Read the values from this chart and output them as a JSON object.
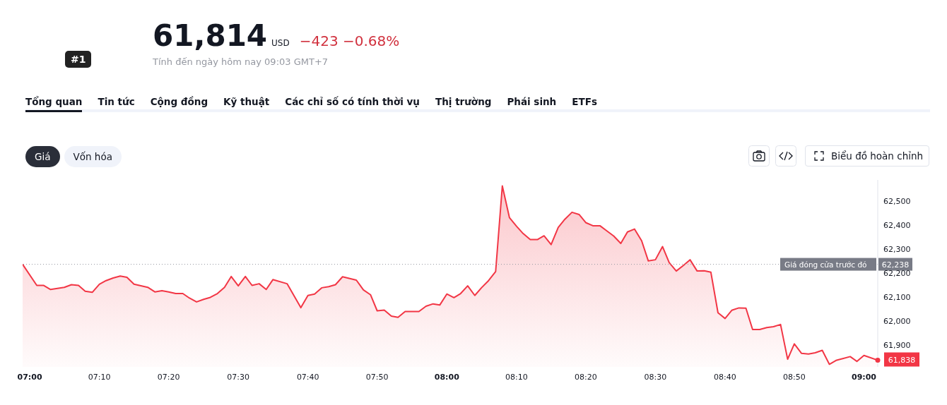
{
  "chart_data": {
    "type": "area",
    "title": "61,814",
    "subtitle": "Tính đến ngày hôm nay 09:03 GMT+7",
    "annotations": [
      "USD",
      "−423",
      "−0.68%",
      "#1",
      "Tổng quan",
      "Tin tức",
      "Cộng đồng",
      "Kỹ thuật",
      "Các chỉ số có tính thời vụ",
      "Thị trường",
      "Phái sinh",
      "ETFs",
      "Giá",
      "Vốn hóa",
      "Biểu đồ hoàn chỉnh",
      "62,238"
    ],
    "x": [
      6.983,
      7.017,
      7.033,
      7.05,
      7.083,
      7.1,
      7.117,
      7.133,
      7.15,
      7.167,
      7.183,
      7.2,
      7.217,
      7.233,
      7.25,
      7.283,
      7.3,
      7.317,
      7.333,
      7.35,
      7.367,
      7.383,
      7.4,
      7.417,
      7.433,
      7.45,
      7.467,
      7.483,
      7.5,
      7.517,
      7.533,
      7.55,
      7.567,
      7.583,
      7.617,
      7.65,
      7.667,
      7.683,
      7.7,
      7.717,
      7.733,
      7.75,
      7.783,
      7.8,
      7.817,
      7.833,
      7.85,
      7.867,
      7.883,
      7.9,
      7.933,
      7.95,
      7.967,
      7.983,
      8.0,
      8.017,
      8.033,
      8.05,
      8.067,
      8.083,
      8.1,
      8.117,
      8.133,
      8.15,
      8.167,
      8.183,
      8.2,
      8.217,
      8.233,
      8.25,
      8.267,
      8.283,
      8.3,
      8.317,
      8.333,
      8.35,
      8.367,
      8.383,
      8.4,
      8.417,
      8.433,
      8.45,
      8.467,
      8.483,
      8.5,
      8.517,
      8.533,
      8.55,
      8.567,
      8.583,
      8.6,
      8.617,
      8.633,
      8.65,
      8.667,
      8.683,
      8.7,
      8.717,
      8.733,
      8.75,
      8.767,
      8.783,
      8.8,
      8.817,
      8.833,
      8.85,
      8.867,
      8.883,
      8.9,
      8.917,
      8.933,
      8.967,
      8.983,
      9.0,
      9.033
    ],
    "series": [
      {
        "color": "#f23645",
        "values": [
          62238,
          62150,
          62150,
          62133,
          62142,
          62153,
          62150,
          62126,
          62121,
          62155,
          62170,
          62181,
          62189,
          62184,
          62155,
          62142,
          62123,
          62128,
          62123,
          62116,
          62116,
          62097,
          62081,
          62092,
          62100,
          62116,
          62142,
          62187,
          62148,
          62187,
          62150,
          62157,
          62133,
          62174,
          62157,
          62057,
          62108,
          62114,
          62140,
          62145,
          62153,
          62186,
          62172,
          62131,
          62111,
          62044,
          62047,
          62022,
          62017,
          62041,
          62041,
          62063,
          62073,
          62068,
          62114,
          62099,
          62116,
          62148,
          62108,
          62140,
          62170,
          62208,
          62565,
          62433,
          62397,
          62366,
          62341,
          62341,
          62357,
          62320,
          62392,
          62426,
          62455,
          62446,
          62412,
          62399,
          62399,
          62378,
          62356,
          62325,
          62373,
          62385,
          62336,
          62252,
          62257,
          62312,
          62245,
          62210,
          62233,
          62257,
          62210,
          62211,
          62205,
          62036,
          62012,
          62046,
          62056,
          62055,
          61966,
          61966,
          61974,
          61978,
          61987,
          61842,
          61906,
          61867,
          61864,
          61869,
          61879,
          61821,
          61837,
          61853,
          61833,
          61858,
          61838
        ],
        "value_labels": [
          null,
          null,
          null,
          null,
          null,
          null,
          null,
          null,
          null,
          null,
          null,
          null,
          null,
          null,
          null,
          null,
          null,
          null,
          null,
          null,
          null,
          null,
          null,
          null,
          null,
          null,
          null,
          null,
          null,
          null,
          null,
          null,
          null,
          null,
          null,
          null,
          null,
          null,
          null,
          null,
          null,
          null,
          null,
          null,
          null,
          null,
          null,
          null,
          null,
          null,
          null,
          null,
          null,
          null,
          null,
          null,
          null,
          null,
          null,
          null,
          null,
          null,
          null,
          null,
          null,
          null,
          null,
          null,
          null,
          null,
          null,
          null,
          null,
          null,
          null,
          null,
          null,
          null,
          null,
          null,
          null,
          null,
          null,
          null,
          null,
          null,
          null,
          null,
          null,
          null,
          null,
          null,
          null,
          null,
          null,
          null,
          null,
          null,
          null,
          null,
          null,
          null,
          null,
          null,
          null,
          null,
          null,
          null,
          null,
          null,
          null,
          null,
          null,
          null,
          "61,838"
        ]
      }
    ],
    "xlim": [
      6.983,
      9.033
    ],
    "xticks": [
      {
        "value": 7,
        "label": "07:00"
      },
      {
        "value": 7.167,
        "label": "07:10"
      },
      {
        "value": 7.333,
        "label": "07:20"
      },
      {
        "value": 7.5,
        "label": "07:30"
      },
      {
        "value": 7.667,
        "label": "07:40"
      },
      {
        "value": 7.833,
        "label": "07:50"
      },
      {
        "value": 8,
        "label": "08:00"
      },
      {
        "value": 8.167,
        "label": "08:10"
      },
      {
        "value": 8.333,
        "label": "08:20"
      },
      {
        "value": 8.5,
        "label": "08:30"
      },
      {
        "value": 8.667,
        "label": "08:40"
      },
      {
        "value": 8.833,
        "label": "08:50"
      },
      {
        "value": 9,
        "label": "09:00"
      }
    ],
    "ylim": [
      61810,
      62590
    ],
    "yticks": [
      {
        "value": 61900,
        "label": "61,900"
      },
      {
        "value": 62000,
        "label": "62,000"
      },
      {
        "value": 62100,
        "label": "62,100"
      },
      {
        "value": 62200,
        "label": "62,200"
      },
      {
        "value": 62300,
        "label": "62,300"
      },
      {
        "value": 62400,
        "label": "62,400"
      },
      {
        "value": 62500,
        "label": "62,500"
      }
    ],
    "ref_lines": [
      {
        "axis": "y",
        "value": 62238,
        "label": "Giá đóng cửa trước đó",
        "color": "#9598a1",
        "line_style": "dotted"
      }
    ],
    "grid": false
  }
}
